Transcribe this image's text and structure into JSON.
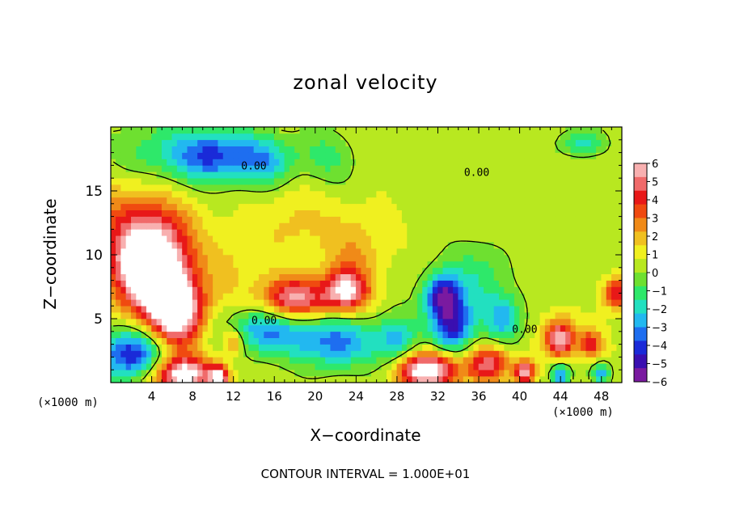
{
  "chart_data": {
    "type": "heatmap",
    "title": "zonal velocity",
    "xlabel": "X−coordinate",
    "ylabel": "Z−coordinate",
    "x_unit": "(×1000 m)",
    "xlim": [
      0,
      50
    ],
    "ylim": [
      0,
      20
    ],
    "x_ticks": [
      4,
      8,
      12,
      16,
      20,
      24,
      28,
      32,
      36,
      40,
      44,
      48
    ],
    "y_ticks": [
      5,
      10,
      15
    ],
    "colorbar": {
      "min": -6,
      "max": 6,
      "ticks": [
        6,
        5,
        4,
        3,
        2,
        1,
        0,
        -1,
        -2,
        -3,
        -4,
        -5,
        -6
      ],
      "tick_labels": [
        "6",
        "5",
        "4",
        "3",
        "2",
        "1",
        "0",
        "−1",
        "−2",
        "−3",
        "−4",
        "−5",
        "−6"
      ],
      "colors": [
        "#7a1aa0",
        "#3a0fb0",
        "#1a2ad8",
        "#1e6ef0",
        "#22b8f0",
        "#22e0c0",
        "#2ee86a",
        "#6ee030",
        "#b8e820",
        "#f0f020",
        "#f0c020",
        "#f08a18",
        "#f04a10",
        "#e81818",
        "#f06a6a",
        "#f8b0b0"
      ]
    },
    "contour_labels": [
      "0.00",
      "0.00",
      "0.00",
      "0.00"
    ],
    "features": [
      {
        "x": 4.2,
        "z": 17.6,
        "v": -2.6,
        "r": 2.8,
        "sx": 5.0
      },
      {
        "x": 10,
        "z": 17.8,
        "v": -4.0,
        "r": 2.0,
        "sx": 3.4
      },
      {
        "x": 15,
        "z": 17.4,
        "v": -3.2,
        "r": 2.0,
        "sx": 3.0
      },
      {
        "x": 21,
        "z": 17.6,
        "v": -1.4,
        "r": 2.2,
        "sx": 3.0
      },
      {
        "x": 2.5,
        "z": 12.5,
        "v": 2.6,
        "r": 5.5
      },
      {
        "x": 4.0,
        "z": 9.0,
        "v": 8.0,
        "r": 3.3
      },
      {
        "x": 6.5,
        "z": 5.5,
        "v": 7.0,
        "r": 2.6
      },
      {
        "x": 2.0,
        "z": 2.2,
        "v": -5.0,
        "r": 2.0,
        "sx": 3.5
      },
      {
        "x": 7.0,
        "z": 0.6,
        "v": 6.5,
        "r": 1.5,
        "sx": 3.0
      },
      {
        "x": 10.6,
        "z": 0.4,
        "v": 6.0,
        "r": 0.9
      },
      {
        "x": 12.0,
        "z": 3.2,
        "v": 3.2,
        "r": 1.1
      },
      {
        "x": 18,
        "z": 6.6,
        "v": 5.0,
        "r": 1.6,
        "sx": 3.2
      },
      {
        "x": 23,
        "z": 7.2,
        "v": 5.5,
        "r": 1.7,
        "sx": 2.2
      },
      {
        "x": 24,
        "z": 10.5,
        "v": 1.6,
        "r": 3.0
      },
      {
        "x": 18,
        "z": 12.5,
        "v": 1.2,
        "r": 3.5
      },
      {
        "x": 12,
        "z": 9.0,
        "v": 1.0,
        "r": 3.0
      },
      {
        "x": 15,
        "z": 4.0,
        "v": -3.5,
        "r": 1.8,
        "sx": 4.0
      },
      {
        "x": 22,
        "z": 3.2,
        "v": -3.8,
        "r": 2.0,
        "sx": 4.0
      },
      {
        "x": 28,
        "z": 3.2,
        "v": -3.0,
        "r": 2.0
      },
      {
        "x": 32.5,
        "z": 6.8,
        "v": -5.5,
        "r": 1.8
      },
      {
        "x": 33.5,
        "z": 4.3,
        "v": -4.6,
        "r": 2.0
      },
      {
        "x": 36.0,
        "z": 8.0,
        "v": -1.8,
        "r": 3.0
      },
      {
        "x": 38.5,
        "z": 5.0,
        "v": -3.0,
        "r": 1.8
      },
      {
        "x": 31,
        "z": 1.0,
        "v": 7.0,
        "r": 1.4,
        "sx": 3.0
      },
      {
        "x": 37,
        "z": 1.5,
        "v": 4.5,
        "r": 1.4,
        "sx": 2.0
      },
      {
        "x": 44,
        "z": 3.5,
        "v": 5.5,
        "r": 1.5
      },
      {
        "x": 40.5,
        "z": 0.8,
        "v": 5.5,
        "r": 1.0
      },
      {
        "x": 47,
        "z": 3.0,
        "v": 3.5,
        "r": 1.2
      },
      {
        "x": 49.5,
        "z": 7.0,
        "v": 4.5,
        "r": 1.2
      },
      {
        "x": 44,
        "z": 0.6,
        "v": -4.0,
        "r": 0.9
      },
      {
        "x": 48,
        "z": 0.8,
        "v": -3.0,
        "r": 0.9
      },
      {
        "x": 46,
        "z": 18.8,
        "v": -2.5,
        "r": 1.0,
        "sx": 2.0
      },
      {
        "x": 40,
        "z": 12,
        "v": 0.0,
        "r": 4.0
      }
    ]
  },
  "footer": "CONTOUR INTERVAL = 1.000E+01"
}
